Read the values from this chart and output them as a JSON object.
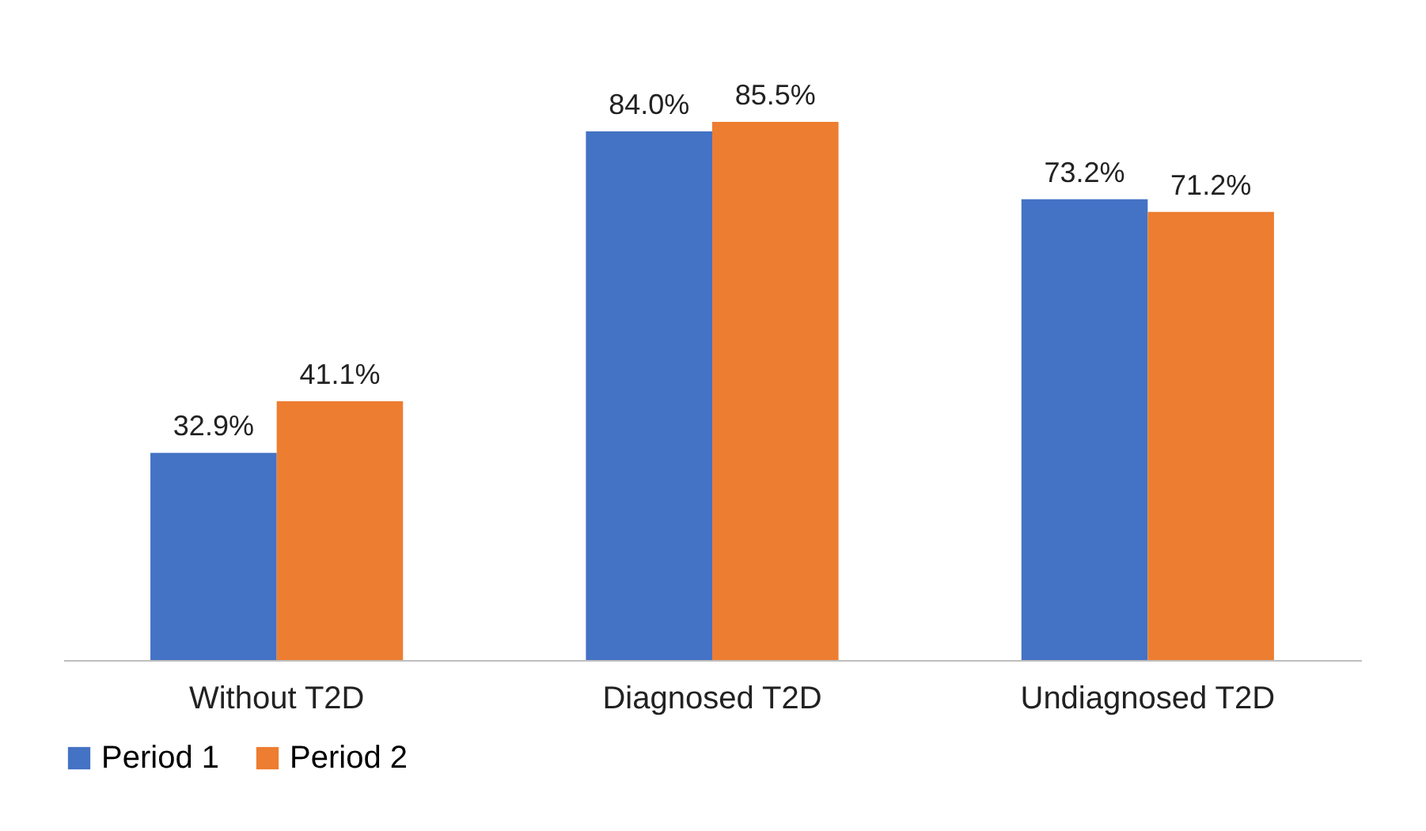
{
  "chart_data": {
    "type": "bar",
    "categories": [
      "Without T2D",
      "Diagnosed T2D",
      "Undiagnosed T2D"
    ],
    "series": [
      {
        "name": "Period 1",
        "color": "#4472c4",
        "values": [
          32.9,
          84.0,
          73.2
        ],
        "value_labels": [
          "32.9%",
          "84.0%",
          "73.2%"
        ]
      },
      {
        "name": "Period 2",
        "color": "#ed7d31",
        "values": [
          41.1,
          85.5,
          71.2
        ],
        "value_labels": [
          "41.1%",
          "85.5%",
          "71.2%"
        ]
      }
    ],
    "grid": false,
    "legend": "bottom"
  }
}
